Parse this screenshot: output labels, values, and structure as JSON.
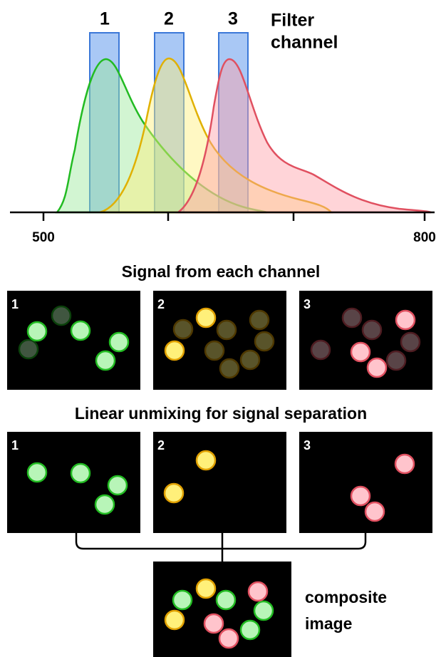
{
  "filter_channels": {
    "labels": [
      "1",
      "2",
      "3"
    ],
    "title_lines": [
      "Filter",
      "channel"
    ]
  },
  "axis": {
    "min_label": "500",
    "max_label": "800"
  },
  "signal_section": {
    "title": "Signal from each channel",
    "panel_labels": [
      "1",
      "2",
      "3"
    ]
  },
  "unmixing_section": {
    "title": "Linear unmixing for signal separation",
    "panel_labels": [
      "1",
      "2",
      "3"
    ]
  },
  "composite": {
    "label_lines": [
      "composite",
      "image"
    ]
  }
}
